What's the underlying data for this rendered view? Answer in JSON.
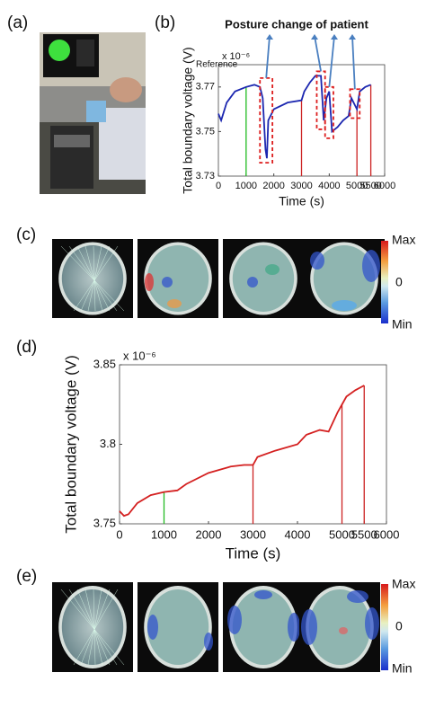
{
  "panels": [
    "(a)",
    "(b)",
    "(c)",
    "(d)",
    "(e)"
  ],
  "colorbars": [
    {
      "max": "Max",
      "zero": "0",
      "min": "Min"
    },
    {
      "max": "Max",
      "zero": "0",
      "min": "Min"
    }
  ],
  "chart_data": [
    {
      "type": "line",
      "title": "Posture change of patient",
      "annotation": "Reference",
      "y_multiplier": "x 10⁻⁶",
      "x_label": "Time (s)",
      "y_label": "Total boundary voltage (V)",
      "color": "#1c27b0",
      "x": [
        0,
        100,
        300,
        600,
        1000,
        1300,
        1500,
        1600,
        1700,
        1750,
        1800,
        2000,
        2500,
        3000,
        3100,
        3300,
        3500,
        3700,
        3800,
        3900,
        4000,
        4100,
        4300,
        4500,
        4700,
        4800,
        5000,
        5100,
        5300,
        5500
      ],
      "values": [
        3.758,
        3.755,
        3.763,
        3.768,
        3.77,
        3.771,
        3.77,
        3.765,
        3.742,
        3.738,
        3.755,
        3.76,
        3.763,
        3.764,
        3.768,
        3.772,
        3.775,
        3.775,
        3.755,
        3.765,
        3.768,
        3.75,
        3.752,
        3.755,
        3.757,
        3.765,
        3.76,
        3.768,
        3.77,
        3.771
      ],
      "xlim": [
        0,
        6000
      ],
      "xticks": [
        0,
        1000,
        2000,
        3000,
        4000,
        5000,
        5500,
        6000
      ],
      "ylim": [
        3.73,
        3.78
      ],
      "yticks": [
        3.73,
        3.75,
        3.77
      ],
      "markers": [
        {
          "x": 1000,
          "color": "#22bb22"
        },
        {
          "x": 3000,
          "color": "#cc2222"
        },
        {
          "x": 5000,
          "color": "#cc2222"
        },
        {
          "x": 5500,
          "color": "#cc2222"
        }
      ],
      "boxes": [
        {
          "x": [
            1500,
            1950
          ],
          "y": [
            3.736,
            3.774
          ]
        },
        {
          "x": [
            3550,
            3850
          ],
          "y": [
            3.751,
            3.777
          ]
        },
        {
          "x": [
            3850,
            4150
          ],
          "y": [
            3.747,
            3.77
          ]
        },
        {
          "x": [
            4750,
            5100
          ],
          "y": [
            3.756,
            3.769
          ]
        }
      ]
    },
    {
      "type": "line",
      "y_multiplier": "x 10⁻⁶",
      "x_label": "Time (s)",
      "y_label": "Total boundary voltage (V)",
      "color": "#d42020",
      "x": [
        0,
        100,
        200,
        400,
        700,
        1000,
        1300,
        1500,
        2000,
        2500,
        2800,
        3000,
        3100,
        3500,
        4000,
        4200,
        4500,
        4700,
        4900,
        5000,
        5100,
        5300,
        5500
      ],
      "values": [
        3.758,
        3.755,
        3.756,
        3.763,
        3.768,
        3.77,
        3.771,
        3.775,
        3.782,
        3.786,
        3.787,
        3.787,
        3.792,
        3.796,
        3.8,
        3.806,
        3.809,
        3.808,
        3.82,
        3.825,
        3.83,
        3.834,
        3.837
      ],
      "xlim": [
        0,
        6000
      ],
      "xticks": [
        0,
        1000,
        2000,
        3000,
        4000,
        5000,
        5500,
        6000
      ],
      "ylim": [
        3.75,
        3.85
      ],
      "yticks": [
        3.75,
        3.8,
        3.85
      ],
      "markers": [
        {
          "x": 1000,
          "color": "#22bb22"
        },
        {
          "x": 3000,
          "color": "#cc2222"
        },
        {
          "x": 5000,
          "color": "#cc2222"
        },
        {
          "x": 5500,
          "color": "#cc2222"
        }
      ]
    }
  ]
}
